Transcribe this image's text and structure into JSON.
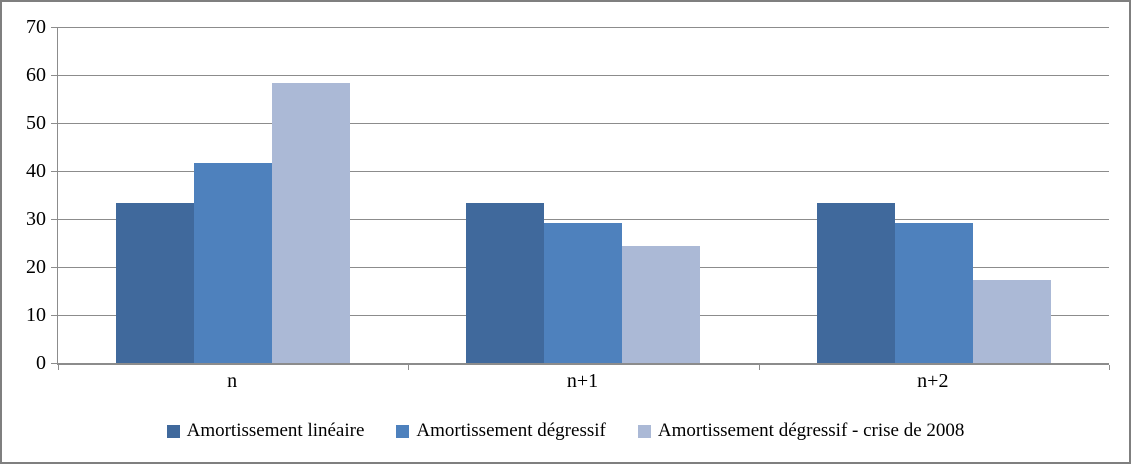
{
  "chart_data": {
    "type": "bar",
    "title": "",
    "xlabel": "",
    "ylabel": "",
    "categories": [
      "n",
      "n+1",
      "n+2"
    ],
    "series": [
      {
        "name": "Amortissement linéaire",
        "color": "#40699C",
        "values": [
          33.33,
          33.33,
          33.33
        ]
      },
      {
        "name": "Amortissement dégressif",
        "color": "#4E81BD",
        "values": [
          41.67,
          29.17,
          29.17
        ]
      },
      {
        "name": "Amortissement dégressif - crise de 2008",
        "color": "#ABB9D6",
        "values": [
          58.33,
          24.31,
          17.36
        ]
      }
    ],
    "ylim": [
      0,
      70
    ],
    "ytick_step": 10,
    "grid": true,
    "legend_position": "bottom"
  },
  "colors": {
    "gridline": "#8C8C8C",
    "axis": "#8C8C8C",
    "frame_border": "#7F7F7F",
    "text": "#000000",
    "background": "#FFFFFF"
  }
}
